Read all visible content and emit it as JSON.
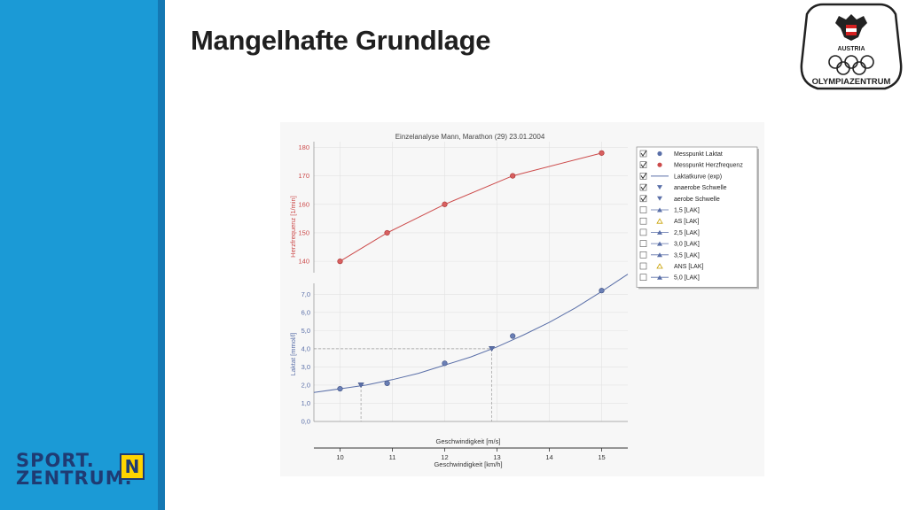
{
  "slide": {
    "title": "Mangelhafte Grundlage"
  },
  "logos": {
    "sport_line1": "SPORT.",
    "sport_line2": "ZENTRUM.",
    "sport_badge": "N",
    "oz_top": "AUSTRIA",
    "oz_bottom": "OLYMPIAZENTRUM"
  },
  "colors": {
    "sidebar": "#1b9ad6",
    "hr": "#cc4a4a",
    "lactate": "#5a6fa8"
  },
  "chart_data": {
    "type": "line",
    "title": "Einzelanalyse Mann, Marathon (29) 23.01.2004",
    "x_top_label": "Geschwindigkeit [m/s]",
    "xlabel": "Geschwindigkeit [km/h]",
    "x_ticks": [
      "10",
      "11",
      "12",
      "13",
      "14",
      "15"
    ],
    "xlim": [
      9.5,
      15.5
    ],
    "hr_axis": {
      "label": "Herzfrequenz [1/min]",
      "ticks": [
        "180",
        "170",
        "160",
        "150",
        "140"
      ],
      "range": [
        136,
        182
      ]
    },
    "lactate_axis": {
      "label": "Laktat [mmol/l]",
      "ticks": [
        "7,0",
        "6,0",
        "5,0",
        "4,0",
        "3,0",
        "2,0",
        "1,0",
        "0,0"
      ],
      "range": [
        0,
        7.6
      ]
    },
    "series": [
      {
        "name": "Messpunkt Laktat",
        "x": [
          10,
          10.9,
          12,
          13.3,
          15
        ],
        "y": [
          1.8,
          2.1,
          3.2,
          4.7,
          7.2
        ]
      },
      {
        "name": "Messpunkt Herzfrequenz",
        "x": [
          10,
          10.9,
          12,
          13.3,
          15
        ],
        "y": [
          140,
          150,
          160,
          170,
          178
        ]
      },
      {
        "name": "Laktatkurve (exp)",
        "x": [
          9.5,
          10,
          10.5,
          11,
          11.5,
          12,
          12.5,
          13,
          13.5,
          14,
          14.5,
          15,
          15.5
        ],
        "y": [
          1.6,
          1.8,
          2.0,
          2.3,
          2.65,
          3.1,
          3.55,
          4.1,
          4.75,
          5.45,
          6.25,
          7.15,
          8.1
        ]
      },
      {
        "name": "anaerobe Schwelle",
        "x": [
          12.9
        ],
        "y": [
          4.0
        ]
      },
      {
        "name": "aerobe Schwelle",
        "x": [
          10.4
        ],
        "y": [
          2.0
        ]
      }
    ],
    "legend": {
      "position": "right",
      "items": [
        {
          "label": "Messpunkt Laktat",
          "checked": true,
          "marker": "circle",
          "color": "#5a6fa8"
        },
        {
          "label": "Messpunkt Herzfrequenz",
          "checked": true,
          "marker": "circle",
          "color": "#cc4a4a"
        },
        {
          "label": "Laktatkurve (exp)",
          "checked": true,
          "marker": "line",
          "color": "#5a6fa8"
        },
        {
          "label": "anaerobe Schwelle",
          "checked": true,
          "marker": "tri-down",
          "color": "#5a6fa8"
        },
        {
          "label": "aerobe Schwelle",
          "checked": true,
          "marker": "tri-down",
          "color": "#5a6fa8"
        },
        {
          "label": "1,5 [LAK]",
          "checked": false,
          "marker": "tri-line",
          "color": "#5a6fa8"
        },
        {
          "label": "AS [LAK]",
          "checked": false,
          "marker": "tri-open",
          "color": "#c8a000"
        },
        {
          "label": "2,5 [LAK]",
          "checked": false,
          "marker": "tri-line",
          "color": "#5a6fa8"
        },
        {
          "label": "3,0 [LAK]",
          "checked": false,
          "marker": "tri-line",
          "color": "#5a6fa8"
        },
        {
          "label": "3,5 [LAK]",
          "checked": false,
          "marker": "tri-line",
          "color": "#5a6fa8"
        },
        {
          "label": "ANS [LAK]",
          "checked": false,
          "marker": "tri-open",
          "color": "#c8a000"
        },
        {
          "label": "5,0 [LAK]",
          "checked": false,
          "marker": "tri-line",
          "color": "#5a6fa8"
        }
      ]
    },
    "grid": true
  }
}
